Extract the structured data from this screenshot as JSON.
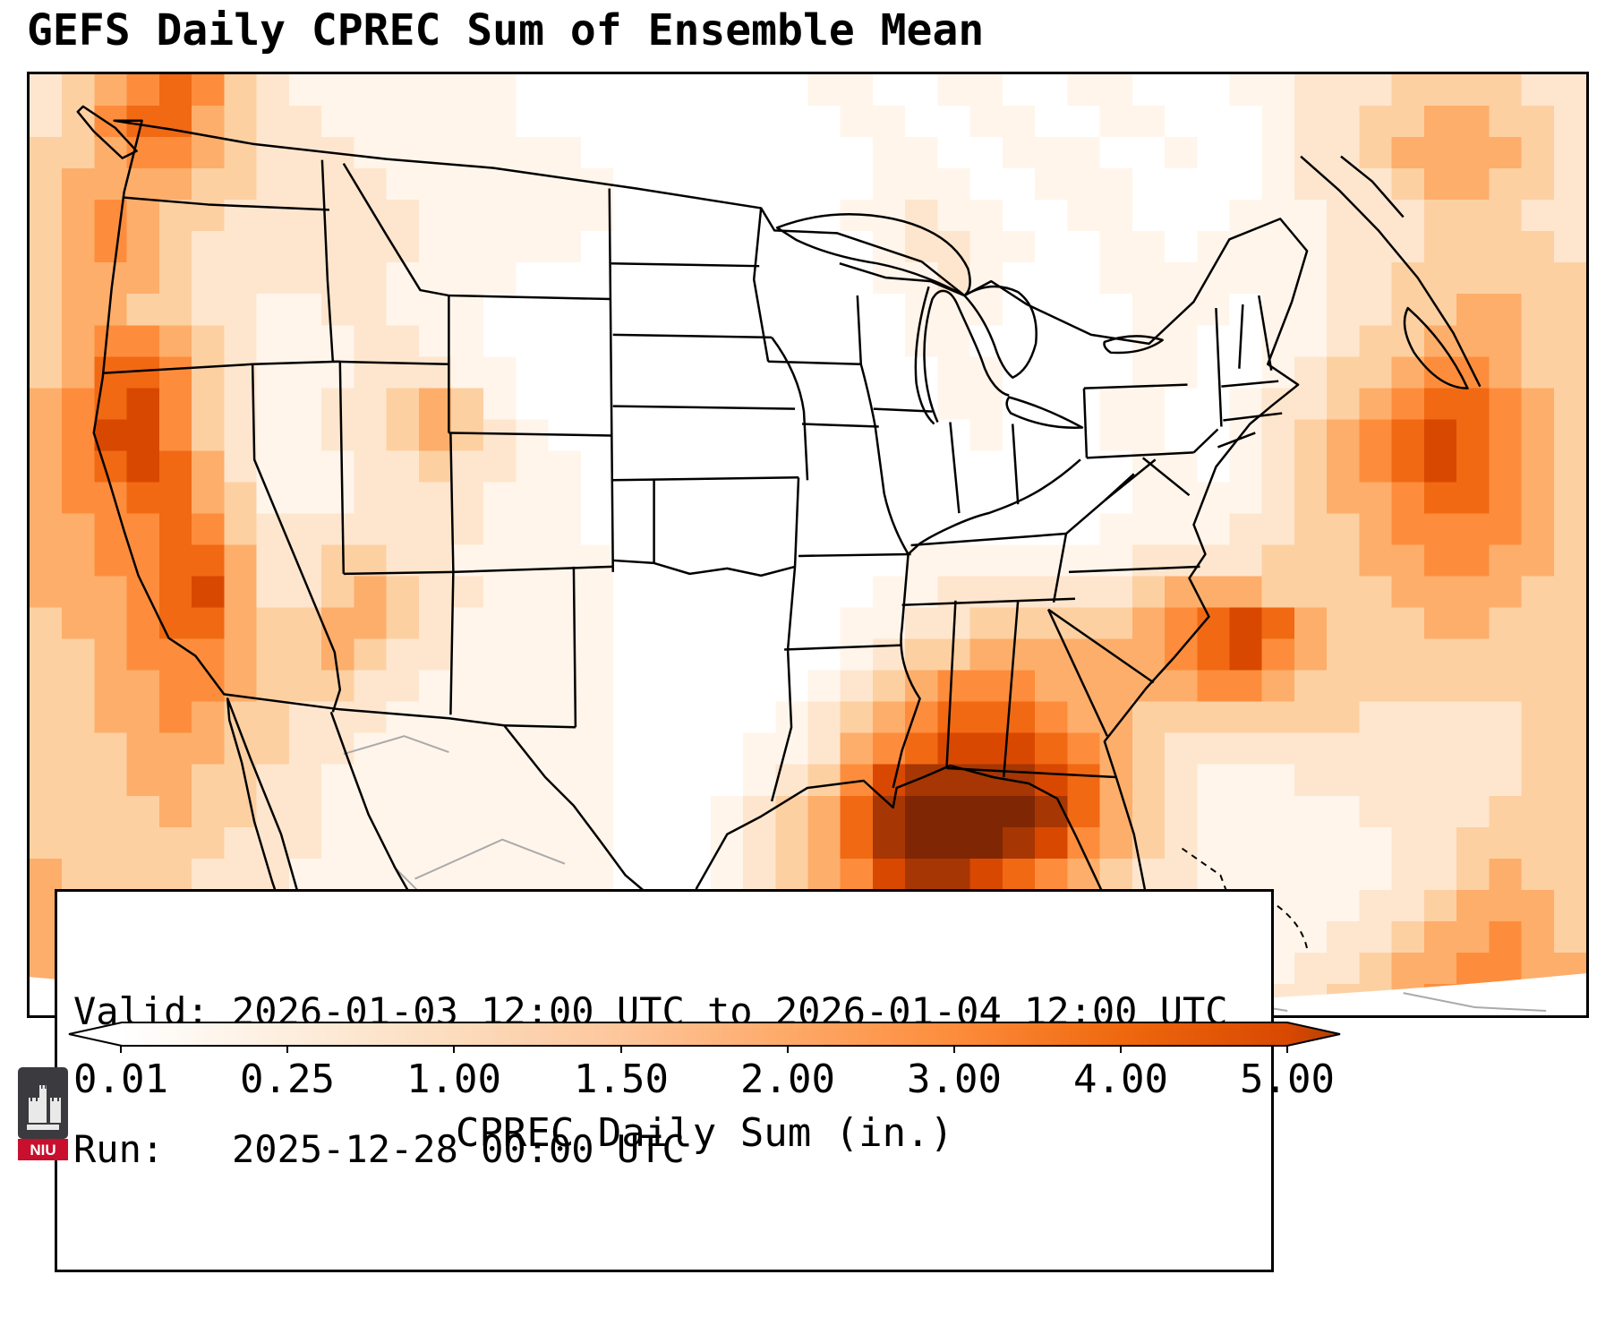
{
  "info_box": {
    "line1": "Valid: 2026-01-03 12:00 UTC to 2026-01-04 12:00 UTC",
    "line2": "Run:   2025-12-28 00:00 UTC"
  },
  "logo": {
    "text": "NIU"
  },
  "chart_data": {
    "type": "heatmap",
    "title": "GEFS Daily CPREC Sum of Ensemble Mean",
    "colorbar": {
      "label": "CPREC Daily Sum (in.)",
      "ticks": [
        "0.01",
        "0.25",
        "1.00",
        "1.50",
        "2.00",
        "3.00",
        "4.00",
        "5.00"
      ],
      "extend": "both",
      "colors": [
        "#ffffff",
        "#fff5eb",
        "#fee6ce",
        "#fdd0a2",
        "#fdae6b",
        "#fd8d3c",
        "#f16913",
        "#d94801",
        "#a63603",
        "#7f2704"
      ],
      "level_lower_bounds_in": [
        0,
        0.01,
        0.1,
        0.25,
        0.5,
        1.0,
        1.5,
        2.0,
        3.0,
        4.0
      ]
    },
    "grid": {
      "cols": 48,
      "rows": 30,
      "encoding": "each character is a color index 0-9 into colorbar.colors; grid covers the full map frame west-to-east, north-to-south",
      "rows_encoded": [
        "234565321111111000000000110011001100011222333322",
        "235664322111111000000000011001100110001223344332",
        "334554322211111110000000001100111001001223444432",
        "344443322221111111000000001110011100001222344332",
        "345433222222111111000000011211001100011122233322",
        "345432222222111110000000001221100110111122233332",
        "344432222221111000000000001121000111111122333333",
        "344332211221110000000000000111000011101122334433",
        "345543211122110000000000000110000011001123344433",
        "346653211122211000000000000011000011001233455433",
        "456753211223431000000000000011000110012234566543",
        "457753211223432100000000000001000110012345676543",
        "456764211122322110000000000000000011012345676543",
        "455664311122221110000000000000000011112344566543",
        "445565322222221110000000000000000111122334555543",
        "445566422332211111000000000111111122223334455443",
        "444567422343221111000000001122222234443333444433",
        "344566433443211111000000011223333345676433344333",
        "334555433432211111000000012334444445675433333333",
        "334455433322111111000000123455544444554333333333",
        "334454332221111111000001234566654433333332222233",
        "333444332211111111000011245677765432222222222233",
        "333443322111111111000012357888876432111222222233",
        "333343322111111111000123468999986432111112222333",
        "333333222111111111000123468999875432111111223333",
        "433332221111111111000123457887654322111111223433",
        "443332211111111111100122345665443321111112234443",
        "443322111111111111100112234444332211111122344543",
        "443322111111111111110111223333322111111223445544",
        "433322111111111111111111122333222111112233455554"
      ]
    }
  }
}
